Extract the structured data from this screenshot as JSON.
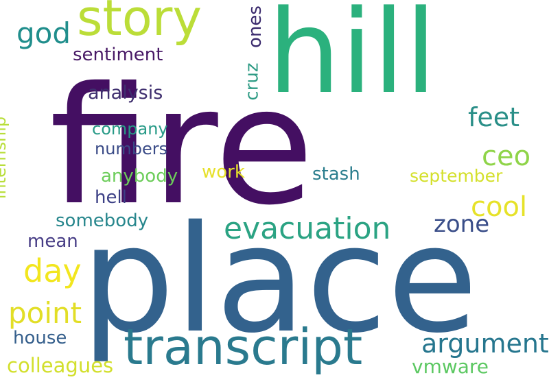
{
  "wordcloud": {
    "words": [
      {
        "text": "fire",
        "color": "#440f62"
      },
      {
        "text": "place",
        "color": "#33628d"
      },
      {
        "text": "hill",
        "color": "#2bb17d"
      },
      {
        "text": "story",
        "color": "#bbdd38"
      },
      {
        "text": "transcript",
        "color": "#2a7a8e"
      },
      {
        "text": "evacuation",
        "color": "#2ba383"
      },
      {
        "text": "god",
        "color": "#208e8c"
      },
      {
        "text": "sentiment",
        "color": "#471865"
      },
      {
        "text": "ones",
        "color": "#3a2a6d"
      },
      {
        "text": "analysis",
        "color": "#3e2e6e"
      },
      {
        "text": "cruz",
        "color": "#2e9b84"
      },
      {
        "text": "feet",
        "color": "#2a8f88"
      },
      {
        "text": "company",
        "color": "#279a87"
      },
      {
        "text": "numbers",
        "color": "#3a4b87"
      },
      {
        "text": "ceo",
        "color": "#8fd449"
      },
      {
        "text": "internship",
        "color": "#b8de3a"
      },
      {
        "text": "work",
        "color": "#e6e02a"
      },
      {
        "text": "anybody",
        "color": "#6ccd5a"
      },
      {
        "text": "stash",
        "color": "#2c7e8e"
      },
      {
        "text": "september",
        "color": "#d4e02c"
      },
      {
        "text": "hell",
        "color": "#3b3f85"
      },
      {
        "text": "cool",
        "color": "#e6e229"
      },
      {
        "text": "zone",
        "color": "#3a4e89"
      },
      {
        "text": "somebody",
        "color": "#26868c"
      },
      {
        "text": "mean",
        "color": "#463c85"
      },
      {
        "text": "day",
        "color": "#f2e61e"
      },
      {
        "text": "point",
        "color": "#e2de26"
      },
      {
        "text": "argument",
        "color": "#26768e"
      },
      {
        "text": "house",
        "color": "#355f8c"
      },
      {
        "text": "colleagues",
        "color": "#d2df2c"
      },
      {
        "text": "vmware",
        "color": "#5cc862"
      }
    ]
  }
}
